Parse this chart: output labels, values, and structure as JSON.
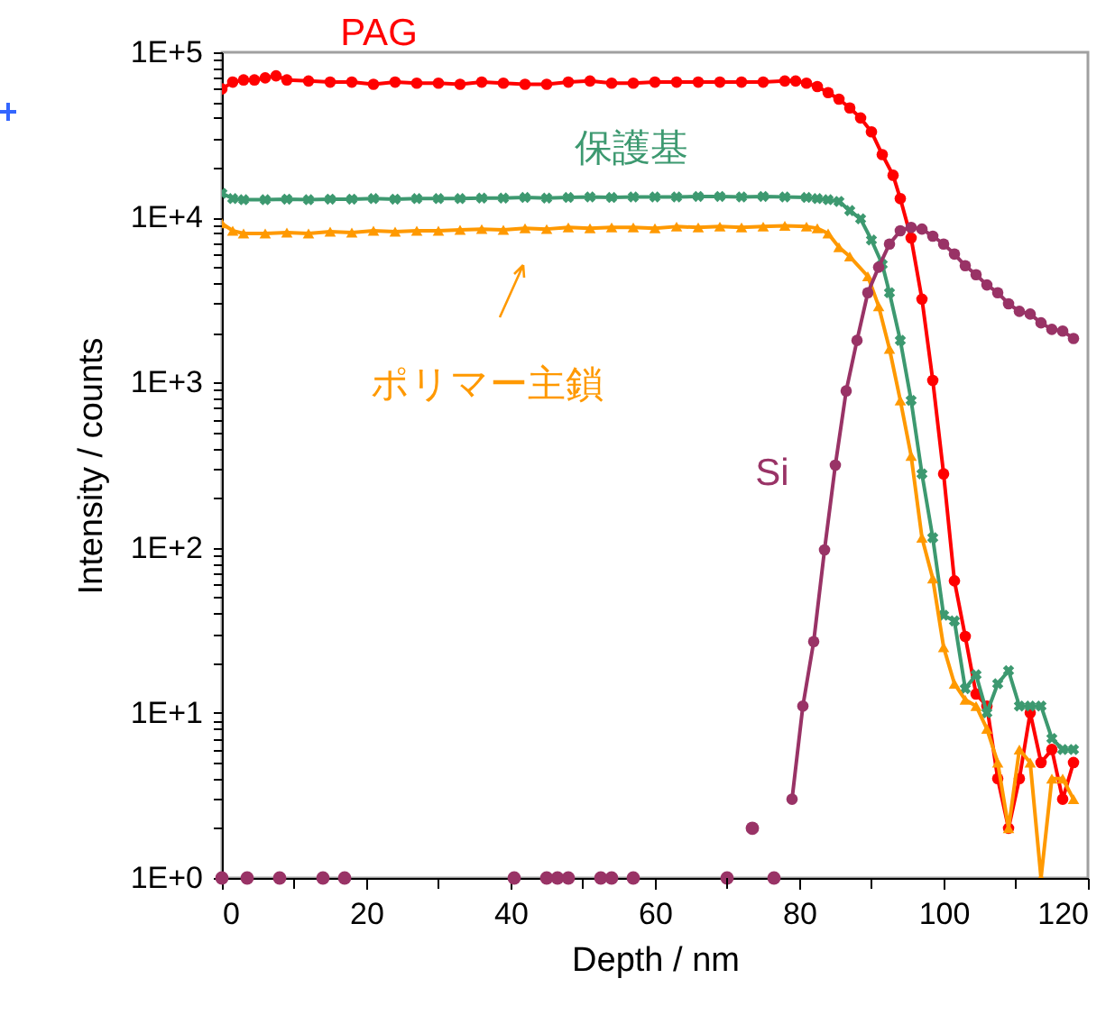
{
  "chart_data": {
    "type": "line",
    "xlabel": "Depth / nm",
    "ylabel": "Intensity / counts",
    "log": "y",
    "grid": false,
    "legend": false,
    "xlim": [
      0,
      120
    ],
    "xticks": [
      0,
      {
        "value": 10,
        "label": null
      },
      20,
      {
        "value": 30,
        "label": null
      },
      40,
      {
        "value": 50,
        "label": null
      },
      60,
      {
        "value": 70,
        "label": null
      },
      80,
      {
        "value": 90,
        "label": null
      },
      100,
      {
        "value": 110,
        "label": null
      },
      120
    ],
    "ylim": [
      1,
      100000
    ],
    "yticks": [
      {
        "value": 1,
        "label": "1E+0"
      },
      {
        "value": 2,
        "label": null
      },
      {
        "value": 3,
        "label": null
      },
      {
        "value": 4,
        "label": null
      },
      {
        "value": 5,
        "label": null
      },
      {
        "value": 6,
        "label": null
      },
      {
        "value": 7,
        "label": null
      },
      {
        "value": 8,
        "label": null
      },
      {
        "value": 9,
        "label": null
      },
      {
        "value": 10,
        "label": "1E+1"
      },
      {
        "value": 20,
        "label": null
      },
      {
        "value": 30,
        "label": null
      },
      {
        "value": 40,
        "label": null
      },
      {
        "value": 50,
        "label": null
      },
      {
        "value": 60,
        "label": null
      },
      {
        "value": 70,
        "label": null
      },
      {
        "value": 80,
        "label": null
      },
      {
        "value": 90,
        "label": null
      },
      {
        "value": 100,
        "label": "1E+2"
      },
      {
        "value": 200,
        "label": null
      },
      {
        "value": 300,
        "label": null
      },
      {
        "value": 400,
        "label": null
      },
      {
        "value": 500,
        "label": null
      },
      {
        "value": 600,
        "label": null
      },
      {
        "value": 700,
        "label": null
      },
      {
        "value": 800,
        "label": null
      },
      {
        "value": 900,
        "label": null
      },
      {
        "value": 1000,
        "label": "1E+3"
      },
      {
        "value": 2000,
        "label": null
      },
      {
        "value": 3000,
        "label": null
      },
      {
        "value": 4000,
        "label": null
      },
      {
        "value": 5000,
        "label": null
      },
      {
        "value": 6000,
        "label": null
      },
      {
        "value": 7000,
        "label": null
      },
      {
        "value": 8000,
        "label": null
      },
      {
        "value": 9000,
        "label": null
      },
      {
        "value": 10000,
        "label": "1E+4"
      },
      {
        "value": 20000,
        "label": null
      },
      {
        "value": 30000,
        "label": null
      },
      {
        "value": 40000,
        "label": null
      },
      {
        "value": 50000,
        "label": null
      },
      {
        "value": 60000,
        "label": null
      },
      {
        "value": 70000,
        "label": null
      },
      {
        "value": 80000,
        "label": null
      },
      {
        "value": 90000,
        "label": null
      },
      {
        "value": 100000,
        "label": "1E+5"
      }
    ],
    "series": [
      {
        "name": "PAG",
        "color": "#ff0000",
        "type": "line",
        "marker": "circle",
        "x": [
          0,
          1.5,
          3,
          4.5,
          6,
          7.5,
          9,
          12,
          15,
          18,
          21,
          24,
          27,
          30,
          33,
          36,
          39,
          42,
          45,
          48,
          51,
          54,
          57,
          60,
          63,
          66,
          69,
          72,
          75,
          78,
          79.5,
          81,
          82.5,
          84,
          85.5,
          87,
          88.5,
          90,
          91.5,
          93,
          94,
          95.5,
          97,
          98.5,
          100,
          101.5,
          103,
          104.5,
          106,
          107.5,
          109,
          110.5,
          112,
          113.5,
          115,
          116.5,
          118
        ],
        "values": [
          60000,
          66000,
          68000,
          68000,
          70000,
          72000,
          68000,
          67000,
          66000,
          66000,
          64000,
          66000,
          65000,
          65000,
          64000,
          66000,
          65000,
          64000,
          64000,
          66000,
          67000,
          65000,
          65000,
          66000,
          66000,
          66000,
          66000,
          66000,
          66000,
          67000,
          67000,
          65000,
          62000,
          57000,
          52000,
          46000,
          40000,
          33000,
          24000,
          18000,
          13000,
          7500,
          3200,
          1030,
          280,
          63,
          29,
          13,
          11,
          4,
          2,
          4,
          10,
          5,
          6,
          3,
          5
        ]
      },
      {
        "name": "保護基",
        "color": "#3d9970",
        "type": "line",
        "marker": "cross",
        "x": [
          0,
          1.5,
          3,
          6,
          9,
          12,
          15,
          18,
          21,
          24,
          27,
          30,
          33,
          36,
          39,
          42,
          45,
          48,
          51,
          54,
          57,
          60,
          63,
          66,
          69,
          72,
          75,
          78,
          81,
          82.5,
          84,
          85.5,
          87,
          88.5,
          90,
          91.5,
          92.5,
          94,
          95.5,
          97,
          98.5,
          100,
          101.5,
          103,
          104.5,
          106,
          107.5,
          109,
          110.5,
          112,
          113.5,
          115,
          116.5,
          118
        ],
        "values": [
          14000,
          13000,
          12800,
          12800,
          12900,
          12800,
          12900,
          12900,
          13000,
          12900,
          13000,
          13000,
          13000,
          13100,
          13100,
          13200,
          13100,
          13200,
          13300,
          13200,
          13300,
          13300,
          13300,
          13400,
          13400,
          13300,
          13400,
          13300,
          13200,
          13000,
          12800,
          12500,
          11000,
          9800,
          7300,
          5200,
          3500,
          1800,
          780,
          280,
          115,
          39,
          36,
          14,
          17,
          10,
          15,
          18,
          11,
          11,
          11,
          7,
          6,
          6
        ]
      },
      {
        "name": "ポリマー主鎖",
        "color": "#ff9900",
        "type": "line",
        "marker": "triangle",
        "x": [
          0,
          1.5,
          3,
          6,
          9,
          12,
          15,
          18,
          21,
          24,
          27,
          30,
          33,
          36,
          39,
          42,
          45,
          48,
          51,
          54,
          57,
          60,
          63,
          66,
          69,
          72,
          75,
          78,
          81,
          82.5,
          84,
          85.5,
          87,
          89.5,
          91,
          92.5,
          94,
          95.5,
          97,
          98.5,
          100,
          101.5,
          103,
          104.5,
          106,
          107.5,
          109,
          110.5,
          112,
          113.5,
          115,
          116.5,
          118
        ],
        "values": [
          9200,
          8300,
          8000,
          8000,
          8100,
          8000,
          8200,
          8100,
          8300,
          8200,
          8300,
          8300,
          8400,
          8500,
          8400,
          8600,
          8500,
          8700,
          8600,
          8700,
          8700,
          8600,
          8800,
          8700,
          8800,
          8700,
          8800,
          8900,
          8800,
          8600,
          8000,
          6600,
          5800,
          4400,
          2900,
          1600,
          780,
          360,
          115,
          65,
          25,
          15,
          12,
          11,
          8,
          5,
          2,
          6,
          5,
          1,
          4,
          4,
          3
        ]
      },
      {
        "name": "Si",
        "color": "#993366",
        "type": "line",
        "marker": "circle",
        "x": [
          79,
          80.5,
          82,
          83.5,
          85,
          86.5,
          88,
          89.5,
          91,
          92.5,
          94,
          95.5,
          97,
          98.5,
          100,
          101.5,
          103,
          104.5,
          106,
          107.5,
          109,
          110.5,
          112,
          113.5,
          115,
          116.5,
          118
        ],
        "values": [
          3,
          11,
          27,
          97,
          316,
          890,
          1800,
          3500,
          5000,
          6900,
          8300,
          8700,
          8500,
          7700,
          6900,
          6000,
          5100,
          4500,
          3900,
          3500,
          3000,
          2700,
          2600,
          2300,
          2100,
          2050,
          1850
        ]
      },
      {
        "color": "#993366",
        "type": "scatter",
        "marker": "circle",
        "x": [
          0,
          3.5,
          8,
          14,
          17,
          40.5,
          45,
          46.5,
          48,
          52.5,
          54,
          57,
          70,
          73.5,
          76.5
        ],
        "values": [
          1,
          1,
          1,
          1,
          1,
          1,
          1,
          1,
          1,
          1,
          1,
          1,
          1,
          2,
          1
        ]
      }
    ]
  }
}
